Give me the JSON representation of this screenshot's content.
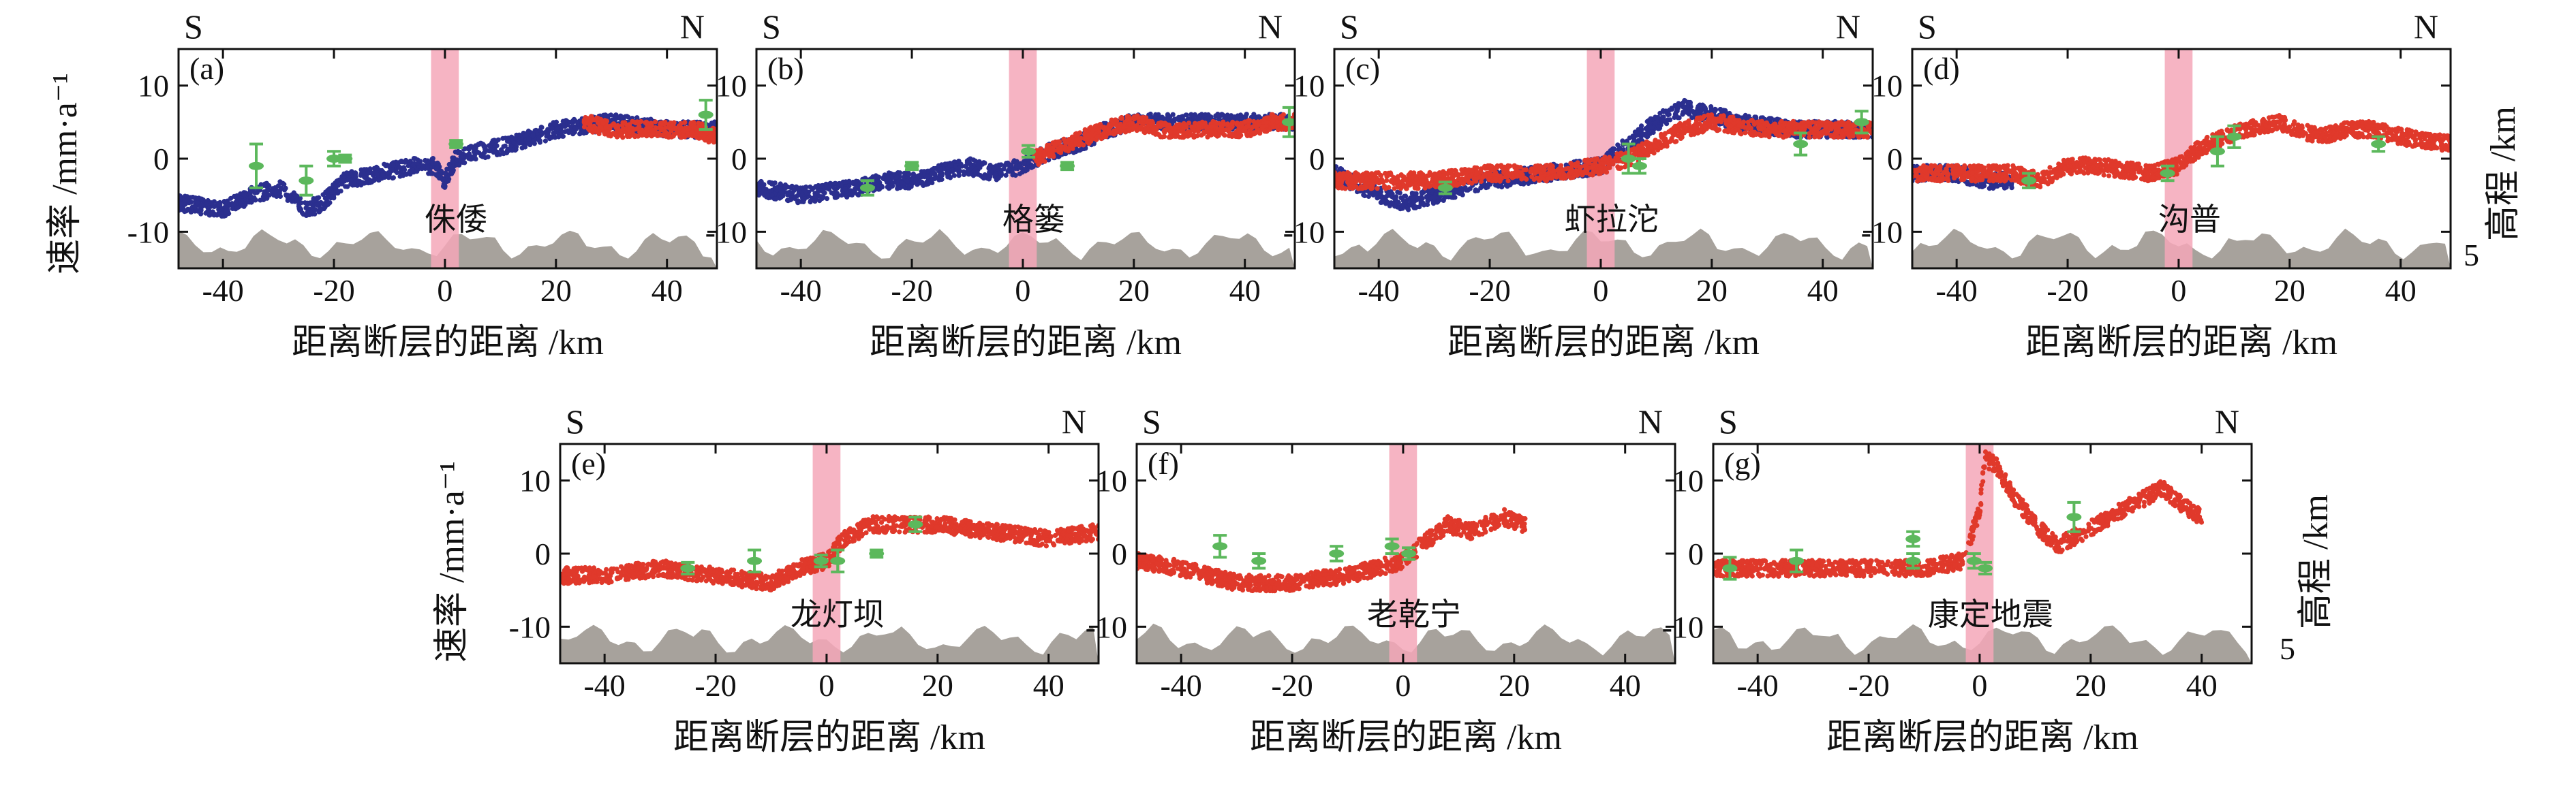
{
  "figure": {
    "ylabel_left": "速率 /mm·a⁻¹",
    "ylabel_right": "高程 /km",
    "right_tick": "5",
    "xlabel": "距离断层的距离 /km",
    "dir_left": "S",
    "dir_right": "N",
    "colors": {
      "blue": "#2b2f8f",
      "red": "#e0392b",
      "green": "#5cb85c",
      "fault_zone": "#f4a7b9",
      "terrain": "#a7a29c"
    }
  },
  "chart_data": [
    {
      "id": "a",
      "label": "(a)",
      "site": "侏倭",
      "type": "scatter",
      "xlim": [
        -48,
        49
      ],
      "ylim": [
        -15,
        15
      ],
      "xticks": [
        -40,
        -20,
        0,
        20,
        40
      ],
      "yticks": [
        10,
        0,
        -10
      ],
      "fault_zone": [
        -2.5,
        2.5
      ],
      "terrain_level": -12,
      "series": [
        {
          "name": "blue",
          "x": [
            -48,
            -40,
            -35,
            -30,
            -25,
            -22,
            -18,
            -12,
            -6,
            -2,
            0,
            2,
            6,
            12,
            20,
            30,
            40,
            49
          ],
          "y": [
            -6,
            -7,
            -5,
            -4,
            -7,
            -6,
            -3,
            -2,
            -1,
            -1,
            -3,
            0,
            1,
            2,
            4,
            5,
            4,
            4
          ]
        },
        {
          "name": "red",
          "x": [
            25,
            30,
            35,
            40,
            45,
            49
          ],
          "y": [
            5,
            4,
            4,
            4,
            4,
            3
          ]
        }
      ],
      "gps": [
        {
          "x": -34,
          "y": -1,
          "err": 3
        },
        {
          "x": -25,
          "y": -3,
          "err": 2
        },
        {
          "x": -20,
          "y": 0,
          "err": 1
        },
        {
          "x": -18,
          "y": 0,
          "err": 0.5
        },
        {
          "x": 2,
          "y": 2,
          "err": 0.5
        },
        {
          "x": 47,
          "y": 6,
          "err": 2
        }
      ]
    },
    {
      "id": "b",
      "label": "(b)",
      "site": "格篓",
      "type": "scatter",
      "xlim": [
        -48,
        49
      ],
      "ylim": [
        -15,
        15
      ],
      "xticks": [
        -40,
        -20,
        0,
        20,
        40
      ],
      "yticks": [
        10,
        0,
        -10
      ],
      "fault_zone": [
        -2.5,
        2.5
      ],
      "terrain_level": -12,
      "series": [
        {
          "name": "blue",
          "x": [
            -48,
            -40,
            -30,
            -25,
            -20,
            -15,
            -10,
            -5,
            0,
            5,
            10,
            15,
            20,
            30,
            40,
            49
          ],
          "y": [
            -4,
            -5,
            -4,
            -3,
            -3,
            -2,
            -1,
            -2,
            -1,
            1,
            2,
            4,
            5,
            5,
            5,
            5
          ]
        },
        {
          "name": "red",
          "x": [
            2,
            8,
            15,
            20,
            25,
            30,
            35,
            40,
            45,
            49
          ],
          "y": [
            0,
            2,
            4,
            5,
            4,
            4,
            4,
            4,
            5,
            5
          ]
        }
      ],
      "gps": [
        {
          "x": -28,
          "y": -4,
          "err": 1
        },
        {
          "x": -20,
          "y": -1,
          "err": 0.5
        },
        {
          "x": 1,
          "y": 1,
          "err": 0.8
        },
        {
          "x": 8,
          "y": -1,
          "err": 0.5
        },
        {
          "x": 48,
          "y": 5,
          "err": 2
        }
      ]
    },
    {
      "id": "c",
      "label": "(c)",
      "site": "虾拉沱",
      "type": "scatter",
      "xlim": [
        -48,
        49
      ],
      "ylim": [
        -15,
        15
      ],
      "xticks": [
        -40,
        -20,
        0,
        20,
        40
      ],
      "yticks": [
        10,
        0,
        -10
      ],
      "fault_zone": [
        -2.5,
        2.5
      ],
      "terrain_level": -12,
      "series": [
        {
          "name": "blue",
          "x": [
            -48,
            -40,
            -35,
            -30,
            -25,
            -20,
            -10,
            0,
            5,
            10,
            15,
            20,
            25,
            35,
            40,
            49
          ],
          "y": [
            -2,
            -5,
            -6,
            -5,
            -4,
            -3,
            -2,
            -1,
            2,
            5,
            7,
            6,
            5,
            4,
            4,
            4
          ]
        },
        {
          "name": "red",
          "x": [
            -48,
            -40,
            -30,
            -20,
            -10,
            0,
            5,
            10,
            15,
            20,
            30,
            40,
            49
          ],
          "y": [
            -3,
            -3,
            -3,
            -2,
            -2,
            -1,
            0,
            2,
            4,
            5,
            4,
            4,
            4
          ]
        }
      ],
      "gps": [
        {
          "x": -28,
          "y": -4,
          "err": 0.8
        },
        {
          "x": 5,
          "y": 0,
          "err": 2
        },
        {
          "x": 7,
          "y": -1,
          "err": 1
        },
        {
          "x": 36,
          "y": 2,
          "err": 1.5
        },
        {
          "x": 47,
          "y": 5,
          "err": 1.5
        }
      ]
    },
    {
      "id": "d",
      "label": "(d)",
      "site": "沟普",
      "type": "scatter",
      "xlim": [
        -48,
        49
      ],
      "ylim": [
        -15,
        15
      ],
      "xticks": [
        -40,
        -20,
        0,
        20,
        40
      ],
      "yticks": [
        10,
        0,
        -10
      ],
      "fault_zone": [
        -2.5,
        2.5
      ],
      "terrain_level": -12,
      "series": [
        {
          "name": "blue",
          "x": [
            -48,
            -45,
            -40,
            -35,
            -30
          ],
          "y": [
            -2,
            -2,
            -2,
            -3,
            -3
          ]
        },
        {
          "name": "red",
          "x": [
            -48,
            -40,
            -30,
            -25,
            -20,
            -15,
            -5,
            0,
            3,
            8,
            12,
            18,
            25,
            30,
            35,
            40,
            49
          ],
          "y": [
            -2,
            -2,
            -2,
            -3,
            -1,
            -1,
            -2,
            -1,
            1,
            3,
            4,
            5,
            3,
            4,
            4,
            3,
            2
          ]
        }
      ],
      "gps": [
        {
          "x": -27,
          "y": -3,
          "err": 1
        },
        {
          "x": -2,
          "y": -2,
          "err": 1
        },
        {
          "x": 7,
          "y": 1,
          "err": 2
        },
        {
          "x": 10,
          "y": 3,
          "err": 1.5
        },
        {
          "x": 36,
          "y": 2,
          "err": 1
        }
      ]
    },
    {
      "id": "e",
      "label": "(e)",
      "site": "龙灯坝",
      "type": "scatter",
      "xlim": [
        -48,
        49
      ],
      "ylim": [
        -15,
        15
      ],
      "xticks": [
        -40,
        -20,
        0,
        20,
        40
      ],
      "yticks": [
        10,
        0,
        -10
      ],
      "fault_zone": [
        -2.5,
        2.5
      ],
      "terrain_level": -12,
      "series": [
        {
          "name": "red",
          "x": [
            -48,
            -40,
            -30,
            -20,
            -10,
            -5,
            0,
            3,
            8,
            12,
            20,
            30,
            40,
            49
          ],
          "y": [
            -3,
            -3,
            -2,
            -3,
            -4,
            -2,
            -1,
            2,
            4,
            4,
            4,
            3,
            2,
            3
          ]
        }
      ],
      "gps": [
        {
          "x": -25,
          "y": -2,
          "err": 0.8
        },
        {
          "x": -13,
          "y": -1,
          "err": 1.5
        },
        {
          "x": -1,
          "y": -1,
          "err": 0.8
        },
        {
          "x": 2,
          "y": -1,
          "err": 1.5
        },
        {
          "x": 9,
          "y": 0,
          "err": 0.5
        },
        {
          "x": 16,
          "y": 4,
          "err": 1
        }
      ]
    },
    {
      "id": "f",
      "label": "(f)",
      "site": "老乾宁",
      "type": "scatter",
      "xlim": [
        -48,
        49
      ],
      "ylim": [
        -15,
        15
      ],
      "xticks": [
        -40,
        -20,
        0,
        20,
        40
      ],
      "yticks": [
        10,
        0,
        -10
      ],
      "fault_zone": [
        -2.5,
        2.5
      ],
      "terrain_level": -12,
      "series": [
        {
          "name": "red",
          "x": [
            -48,
            -40,
            -30,
            -20,
            -10,
            -5,
            0,
            3,
            8,
            12,
            18,
            22
          ],
          "y": [
            -1,
            -2,
            -4,
            -4,
            -3,
            -2,
            -1,
            1,
            4,
            3,
            5,
            4
          ]
        }
      ],
      "gps": [
        {
          "x": -33,
          "y": 1,
          "err": 1.5
        },
        {
          "x": -26,
          "y": -1,
          "err": 1
        },
        {
          "x": -12,
          "y": 0,
          "err": 1
        },
        {
          "x": -2,
          "y": 1,
          "err": 1
        },
        {
          "x": 1,
          "y": 0,
          "err": 0.8
        }
      ]
    },
    {
      "id": "g",
      "label": "(g)",
      "site": "康定地震",
      "type": "scatter",
      "xlim": [
        -48,
        49
      ],
      "ylim": [
        -15,
        15
      ],
      "xticks": [
        -40,
        -20,
        0,
        20,
        40
      ],
      "yticks": [
        10,
        0,
        -10
      ],
      "fault_zone": [
        -2.5,
        2.5
      ],
      "terrain_level": -12,
      "series": [
        {
          "name": "red",
          "x": [
            -48,
            -40,
            -30,
            -20,
            -10,
            -3,
            0,
            1,
            3,
            6,
            10,
            14,
            33,
            36,
            40
          ],
          "y": [
            -2,
            -2,
            -2,
            -2,
            -2,
            -1,
            6,
            13,
            12,
            8,
            4,
            1,
            9,
            7,
            5
          ]
        }
      ],
      "gps": [
        {
          "x": -45,
          "y": -2,
          "err": 1.5
        },
        {
          "x": -33,
          "y": -1,
          "err": 1.5
        },
        {
          "x": -12,
          "y": 2,
          "err": 1
        },
        {
          "x": -12,
          "y": -1,
          "err": 1
        },
        {
          "x": -1,
          "y": -1,
          "err": 1
        },
        {
          "x": 1,
          "y": -2,
          "err": 0.8
        },
        {
          "x": 17,
          "y": 5,
          "err": 2
        }
      ]
    }
  ]
}
